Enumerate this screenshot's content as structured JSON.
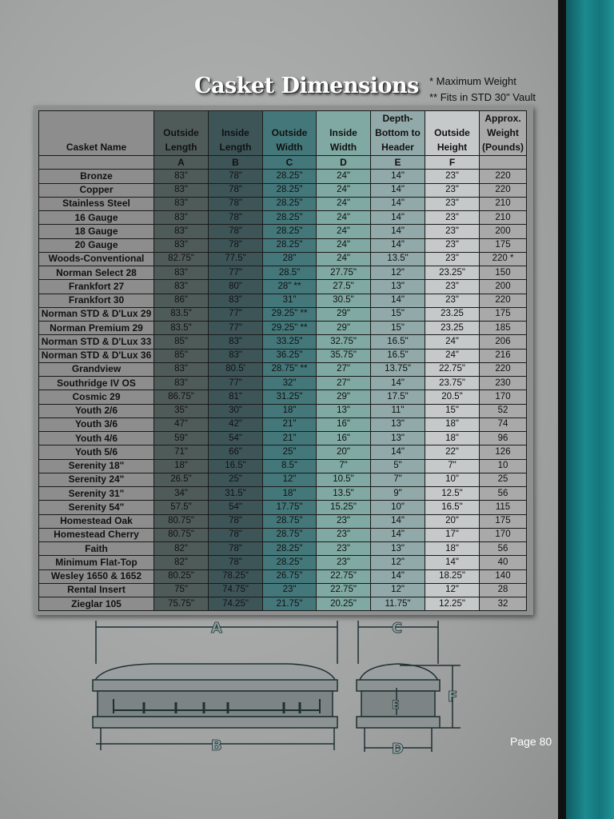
{
  "title": "Casket Dimensions",
  "notes": [
    "* Maximum Weight",
    "** Fits in STD 30\" Vault"
  ],
  "table": {
    "headers": [
      "Casket Name",
      "Outside Length",
      "Inside Length",
      "Outside Width",
      "Inside Width",
      "Depth- Bottom to Header",
      "Outside Height",
      "Approx. Weight (Pounds)"
    ],
    "letters": [
      "",
      "A",
      "B",
      "C",
      "D",
      "E",
      "F",
      ""
    ],
    "column_colors": [
      "#8d8d8d",
      "#4f5b59",
      "#3e5558",
      "#44777a",
      "#7fa9a2",
      "#92a9a9",
      "#c5c9c9",
      "#a9a9a9"
    ],
    "rows": [
      [
        "Bronze",
        "83\"",
        "78\"",
        "28.25\"",
        "24\"",
        "14\"",
        "23\"",
        "220"
      ],
      [
        "Copper",
        "83\"",
        "78\"",
        "28.25\"",
        "24\"",
        "14\"",
        "23\"",
        "220"
      ],
      [
        "Stainless Steel",
        "83\"",
        "78\"",
        "28.25\"",
        "24\"",
        "14\"",
        "23\"",
        "210"
      ],
      [
        "16 Gauge",
        "83\"",
        "78\"",
        "28.25\"",
        "24\"",
        "14\"",
        "23\"",
        "210"
      ],
      [
        "18 Gauge",
        "83\"",
        "78\"",
        "28.25\"",
        "24\"",
        "14\"",
        "23\"",
        "200"
      ],
      [
        "20 Gauge",
        "83\"",
        "78\"",
        "28.25\"",
        "24\"",
        "14\"",
        "23\"",
        "175"
      ],
      [
        "Woods-Conventional",
        "82.75\"",
        "77.5\"",
        "28\"",
        "24\"",
        "13.5\"",
        "23\"",
        "220 *"
      ],
      [
        "Norman Select 28",
        "83\"",
        "77\"",
        "28.5\"",
        "27.75\"",
        "12\"",
        "23.25\"",
        "150"
      ],
      [
        "Frankfort 27",
        "83\"",
        "80\"",
        "28\" **",
        "27.5\"",
        "13\"",
        "23\"",
        "200"
      ],
      [
        "Frankfort 30",
        "86\"",
        "83\"",
        "31\"",
        "30.5\"",
        "14\"",
        "23\"",
        "220"
      ],
      [
        "Norman STD & D'Lux 29",
        "83.5\"",
        "77\"",
        "29.25\" **",
        "29\"",
        "15\"",
        "23.25",
        "175"
      ],
      [
        "Norman Premium 29",
        "83.5\"",
        "77\"",
        "29.25\" **",
        "29\"",
        "15\"",
        "23.25",
        "185"
      ],
      [
        "Norman STD & D'Lux 33",
        "85\"",
        "83\"",
        "33.25\"",
        "32.75\"",
        "16.5\"",
        "24\"",
        "206"
      ],
      [
        "Norman STD & D'Lux 36",
        "85\"",
        "83\"",
        "36.25\"",
        "35.75\"",
        "16.5\"",
        "24\"",
        "216"
      ],
      [
        "Grandview",
        "83\"",
        "80.5'",
        "28.75\" **",
        "27\"",
        "13.75\"",
        "22.75\"",
        "220"
      ],
      [
        "Southridge IV OS",
        "83\"",
        "77\"",
        "32\"",
        "27\"",
        "14\"",
        "23.75\"",
        "230"
      ],
      [
        "Cosmic 29",
        "86.75\"",
        "81\"",
        "31.25\"",
        "29\"",
        "17.5\"",
        "20.5\"",
        "170"
      ],
      [
        "Youth 2/6",
        "35\"",
        "30\"",
        "18\"",
        "13\"",
        "11\"",
        "15\"",
        "52"
      ],
      [
        "Youth 3/6",
        "47\"",
        "42\"",
        "21\"",
        "16\"",
        "13\"",
        "18\"",
        "74"
      ],
      [
        "Youth 4/6",
        "59\"",
        "54\"",
        "21\"",
        "16\"",
        "13\"",
        "18\"",
        "96"
      ],
      [
        "Youth 5/6",
        "71\"",
        "66\"",
        "25\"",
        "20\"",
        "14\"",
        "22\"",
        "126"
      ],
      [
        "Serenity 18\"",
        "18\"",
        "16.5\"",
        "8.5\"",
        "7\"",
        "5\"",
        "7\"",
        "10"
      ],
      [
        "Serenity 24\"",
        "26.5\"",
        "25\"",
        "12\"",
        "10.5\"",
        "7\"",
        "10\"",
        "25"
      ],
      [
        "Serenity 31\"",
        "34\"",
        "31.5\"",
        "18\"",
        "13.5\"",
        "9\"",
        "12.5\"",
        "56"
      ],
      [
        "Serenity 54\"",
        "57.5\"",
        "54\"",
        "17.75\"",
        "15.25\"",
        "10\"",
        "16.5\"",
        "115"
      ],
      [
        "Homestead Oak",
        "80.75\"",
        "78\"",
        "28.75\"",
        "23\"",
        "14\"",
        "20\"",
        "175"
      ],
      [
        "Homestead Cherry",
        "80.75\"",
        "78\"",
        "28.75\"",
        "23\"",
        "14\"",
        "17\"",
        "170"
      ],
      [
        "Faith",
        "82\"",
        "78\"",
        "28.25\"",
        "23\"",
        "13\"",
        "18\"",
        "56"
      ],
      [
        "Minimum Flat-Top",
        "82\"",
        "78\"",
        "28.25\"",
        "23\"",
        "12\"",
        "14\"",
        "40"
      ],
      [
        "Wesley 1650 & 1652",
        "80.25\"",
        "78.25\"",
        "26.75\"",
        "22.75\"",
        "14\"",
        "18.25\"",
        "140"
      ],
      [
        "Rental Insert",
        "75\"",
        "74.75\"",
        "23\"",
        "22.75\"",
        "12\"",
        "12\"",
        "28"
      ],
      [
        "Zieglar 105",
        "75.75\"",
        "74.25\"",
        "21.75\"",
        "20.25\"",
        "11.75\"",
        "12.25\"",
        "32"
      ]
    ]
  },
  "diagram": {
    "labels": [
      "A",
      "B",
      "C",
      "D",
      "E",
      "F"
    ]
  },
  "page_label": "Page 80"
}
